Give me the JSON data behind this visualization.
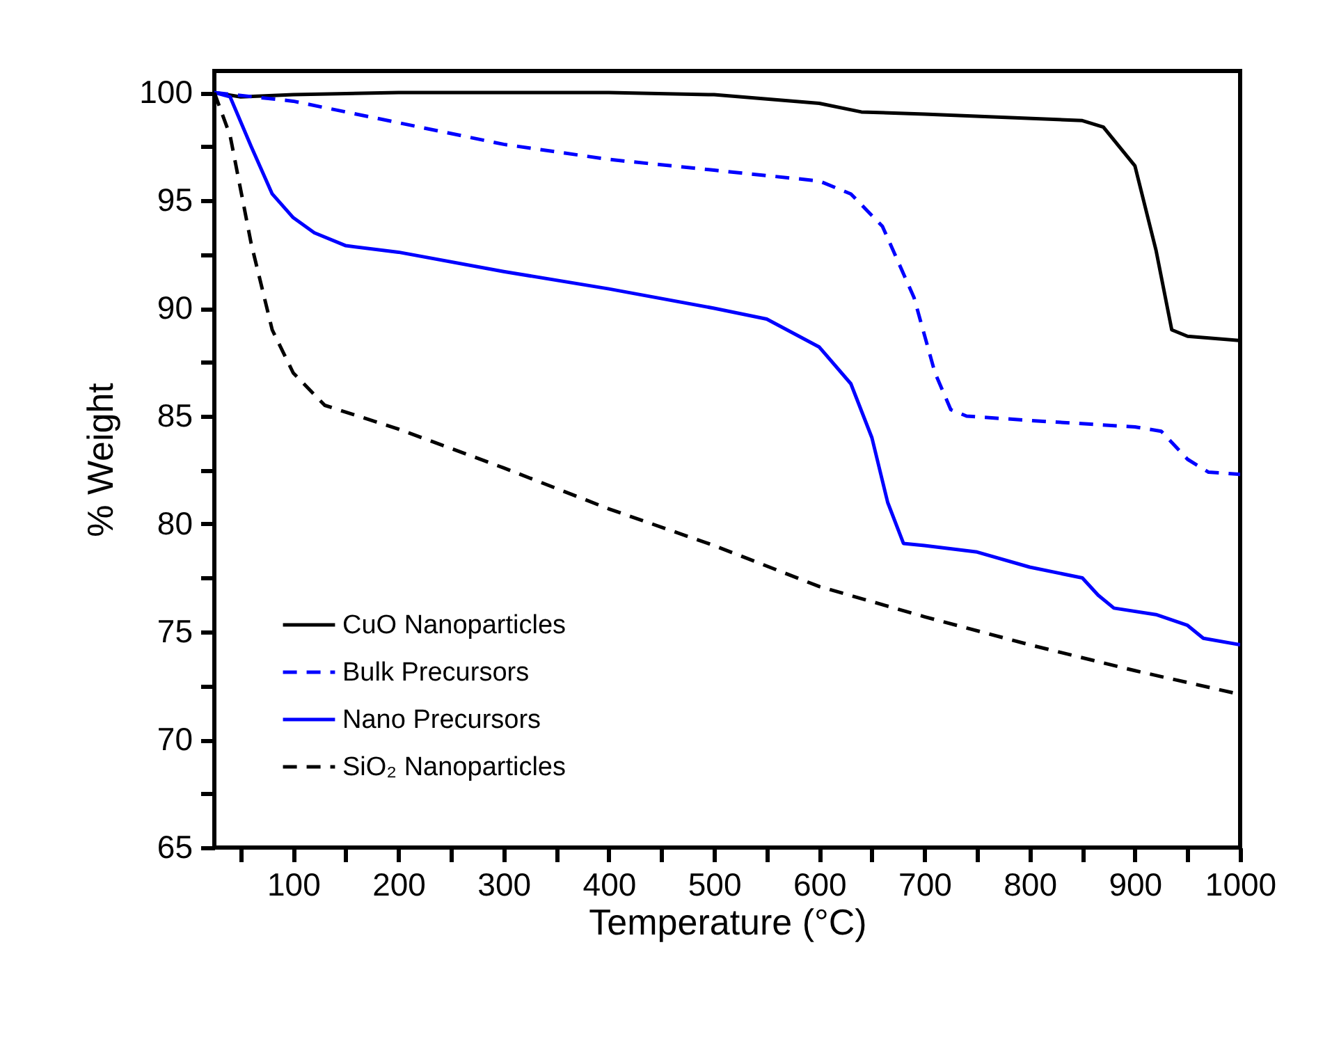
{
  "chart_data": {
    "type": "line",
    "xlabel": "Temperature (°C)",
    "ylabel": "% Weight",
    "xlim": [
      25,
      1000
    ],
    "ylim": [
      65,
      101
    ],
    "xticks": [
      {
        "value": 50,
        "label": null
      },
      100,
      {
        "value": 150,
        "label": null
      },
      200,
      {
        "value": 250,
        "label": null
      },
      300,
      {
        "value": 350,
        "label": null
      },
      400,
      {
        "value": 450,
        "label": null
      },
      500,
      {
        "value": 550,
        "label": null
      },
      600,
      {
        "value": 650,
        "label": null
      },
      700,
      {
        "value": 750,
        "label": null
      },
      800,
      {
        "value": 850,
        "label": null
      },
      900,
      {
        "value": 950,
        "label": null
      },
      1000
    ],
    "yticks": [
      65,
      {
        "value": 67.5,
        "label": null
      },
      70,
      {
        "value": 72.5,
        "label": null
      },
      75,
      {
        "value": 77.5,
        "label": null
      },
      80,
      {
        "value": 82.5,
        "label": null
      },
      85,
      {
        "value": 87.5,
        "label": null
      },
      90,
      {
        "value": 92.5,
        "label": null
      },
      95,
      {
        "value": 97.5,
        "label": null
      },
      100
    ],
    "grid": false,
    "legend": "bottom left",
    "marker": "none",
    "series": [
      {
        "name": "CuO Nanoparticles",
        "color": "#000000",
        "line_style": "solid",
        "x": [
          25,
          50,
          100,
          200,
          400,
          500,
          600,
          640,
          700,
          850,
          870,
          900,
          920,
          935,
          950,
          1000
        ],
        "values": [
          100,
          99.8,
          99.9,
          100,
          100,
          99.9,
          99.5,
          99.1,
          99.0,
          98.7,
          98.4,
          96.6,
          92.7,
          89.0,
          88.7,
          88.5
        ]
      },
      {
        "name": "Bulk Precursors",
        "color": "#0000ff",
        "line_style": "dashed",
        "x": [
          25,
          100,
          200,
          300,
          400,
          500,
          600,
          630,
          660,
          690,
          710,
          725,
          740,
          800,
          900,
          925,
          950,
          970,
          1000
        ],
        "values": [
          100,
          99.6,
          98.6,
          97.6,
          96.9,
          96.4,
          95.9,
          95.3,
          93.8,
          90.5,
          87,
          85.3,
          85.0,
          84.8,
          84.5,
          84.3,
          83.0,
          82.4,
          82.3
        ]
      },
      {
        "name": "Nano Precursors",
        "color": "#0000ff",
        "line_style": "solid",
        "x": [
          25,
          40,
          60,
          80,
          100,
          120,
          150,
          200,
          300,
          400,
          500,
          550,
          600,
          630,
          650,
          665,
          680,
          700,
          750,
          800,
          850,
          865,
          880,
          920,
          950,
          965,
          1000
        ],
        "values": [
          100,
          99.8,
          97.5,
          95.3,
          94.2,
          93.5,
          92.9,
          92.6,
          91.7,
          90.9,
          90.0,
          89.5,
          88.2,
          86.5,
          84,
          81,
          79.1,
          79.0,
          78.7,
          78.0,
          77.5,
          76.7,
          76.1,
          75.8,
          75.3,
          74.7,
          74.4
        ]
      },
      {
        "name": "SiO₂ Nanoparticles",
        "color": "#000000",
        "line_style": "dashed",
        "x": [
          25,
          40,
          60,
          80,
          100,
          130,
          200,
          300,
          400,
          500,
          600,
          700,
          800,
          900,
          1000
        ],
        "values": [
          100,
          98,
          93,
          89,
          87,
          85.5,
          84.4,
          82.6,
          80.7,
          79,
          77.1,
          75.7,
          74.4,
          73.2,
          72.1
        ]
      }
    ]
  }
}
